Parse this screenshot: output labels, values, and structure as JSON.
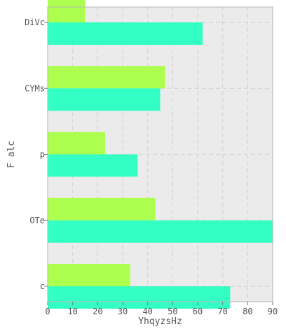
{
  "chart_data": {
    "type": "bar",
    "orientation": "horizontal",
    "title": "",
    "xlabel": "YhqyzsHz",
    "ylabel": "F alc",
    "categories": [
      "DiVc",
      "CYMs",
      "p",
      "OTe",
      "c"
    ],
    "x_ticks": [
      0,
      10,
      20,
      30,
      40,
      50,
      60,
      70,
      80,
      90
    ],
    "xlim": [
      0,
      90
    ],
    "grid": true,
    "series": [
      {
        "color": "#adff4f",
        "values": [
          15,
          47,
          23,
          43,
          33
        ]
      },
      {
        "color": "#33ffc4",
        "values": [
          62,
          45,
          36,
          90,
          73
        ]
      }
    ]
  }
}
